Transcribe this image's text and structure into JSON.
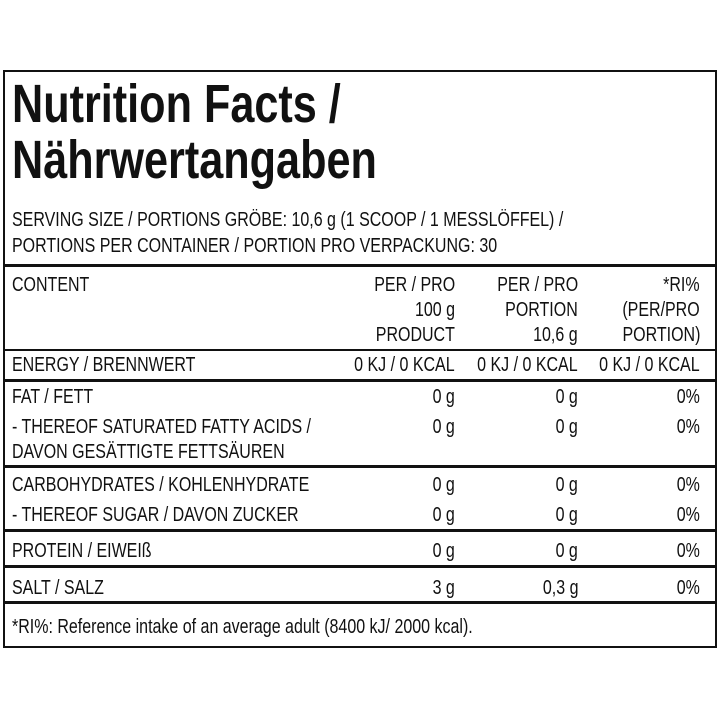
{
  "title": [
    "Nutrition Facts /",
    "Nährwertangaben"
  ],
  "serving": [
    "SERVING SIZE / PORTIONS GRÖBE: 10,6 g (1 SCOOP / 1 MESSLÖFFEL) /",
    "PORTIONS PER CONTAINER / PORTION PRO VERPACKUNG: 30"
  ],
  "table": {
    "header": [
      [
        "CONTENT"
      ],
      [
        "PER / PRO",
        "100 g",
        "PRODUCT"
      ],
      [
        "PER / PRO",
        "PORTION",
        "10,6 g"
      ],
      [
        "*RI%",
        "(PER/PRO",
        "PORTION)"
      ]
    ],
    "rows": [
      {
        "label": [
          "ENERGY / BRENNWERT"
        ],
        "values": [
          "0 KJ / 0 KCAL",
          "0 KJ / 0 KCAL",
          "0 KJ / 0 KCAL"
        ]
      },
      {
        "label": [
          "FAT / FETT"
        ],
        "values": [
          "0 g",
          "0 g",
          "0%"
        ]
      },
      {
        "label": [
          "- THEREOF SATURATED FATTY ACIDS /",
          "DAVON GESÄTTIGTE FETTSÄUREN"
        ],
        "values": [
          "0 g",
          "0 g",
          "0%"
        ]
      },
      {
        "label": [
          "CARBOHYDRATES / KOHLENHYDRATE"
        ],
        "values": [
          "0 g",
          "0 g",
          "0%"
        ]
      },
      {
        "label": [
          "- THEREOF SUGAR / DAVON ZUCKER"
        ],
        "values": [
          "0 g",
          "0 g",
          "0%"
        ]
      },
      {
        "label": [
          "PROTEIN / EIWEIß"
        ],
        "values": [
          "0 g",
          "0 g",
          "0%"
        ]
      },
      {
        "label": [
          "SALT / SALZ"
        ],
        "values": [
          "3 g",
          "0,3 g",
          "0%"
        ]
      }
    ]
  },
  "footnote": "*RI%: Reference intake of an average adult (8400 kJ/ 2000 kcal)."
}
